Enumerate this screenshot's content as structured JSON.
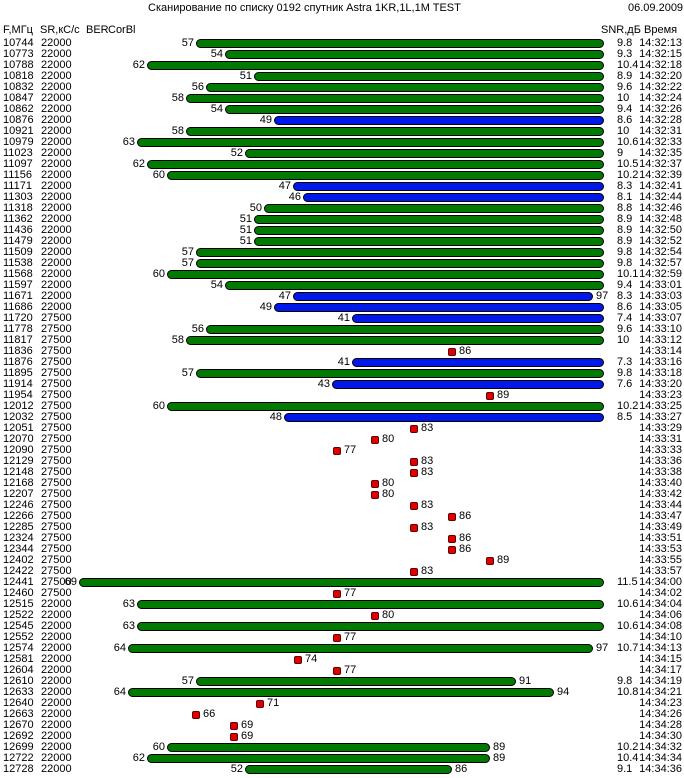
{
  "header": {
    "title": "Сканирование по списку  0192    спутник  Astra 1KR,1L,1M   TEST",
    "date": "06.09.2009"
  },
  "columns": {
    "freq": "F,МГц",
    "sr": "SR,кС/с",
    "ber": "BER",
    "corbl": "CorBl",
    "snr": "SNR,дБ",
    "time": "Время"
  },
  "colors": {
    "green": "#007a00",
    "blue": "#0018e8",
    "red": "#e00000"
  },
  "rows": [
    {
      "freq": "10744",
      "sr": "22000",
      "level": "57",
      "quality": "",
      "color": "green",
      "snr": "9.8",
      "time": "14:32:13"
    },
    {
      "freq": "10773",
      "sr": "22000",
      "level": "54",
      "quality": "",
      "color": "green",
      "snr": "9.3",
      "time": "14:32:15"
    },
    {
      "freq": "10788",
      "sr": "22000",
      "level": "62",
      "quality": "",
      "color": "green",
      "snr": "10.4",
      "time": "14:32:18"
    },
    {
      "freq": "10818",
      "sr": "22000",
      "level": "51",
      "quality": "",
      "color": "green",
      "snr": "8.9",
      "time": "14:32:20"
    },
    {
      "freq": "10832",
      "sr": "22000",
      "level": "56",
      "quality": "",
      "color": "green",
      "snr": "9.6",
      "time": "14:32:22"
    },
    {
      "freq": "10847",
      "sr": "22000",
      "level": "58",
      "quality": "",
      "color": "green",
      "snr": "10",
      "time": "14:32:24"
    },
    {
      "freq": "10862",
      "sr": "22000",
      "level": "54",
      "quality": "",
      "color": "green",
      "snr": "9.4",
      "time": "14:32:26"
    },
    {
      "freq": "10876",
      "sr": "22000",
      "level": "49",
      "quality": "",
      "color": "blue",
      "snr": "8.6",
      "time": "14:32:28"
    },
    {
      "freq": "10921",
      "sr": "22000",
      "level": "58",
      "quality": "",
      "color": "green",
      "snr": "10",
      "time": "14:32:31"
    },
    {
      "freq": "10979",
      "sr": "22000",
      "level": "63",
      "quality": "",
      "color": "green",
      "snr": "10.6",
      "time": "14:32:33"
    },
    {
      "freq": "11023",
      "sr": "22000",
      "level": "52",
      "quality": "",
      "color": "green",
      "snr": "9",
      "time": "14:32:35"
    },
    {
      "freq": "11097",
      "sr": "22000",
      "level": "62",
      "quality": "",
      "color": "green",
      "snr": "10.5",
      "time": "14:32:37"
    },
    {
      "freq": "11156",
      "sr": "22000",
      "level": "60",
      "quality": "",
      "color": "green",
      "snr": "10.2",
      "time": "14:32:39"
    },
    {
      "freq": "11171",
      "sr": "22000",
      "level": "47",
      "quality": "",
      "color": "blue",
      "snr": "8.3",
      "time": "14:32:41"
    },
    {
      "freq": "11303",
      "sr": "22000",
      "level": "46",
      "quality": "",
      "color": "blue",
      "snr": "8.1",
      "time": "14:32:44"
    },
    {
      "freq": "11318",
      "sr": "22000",
      "level": "50",
      "quality": "",
      "color": "green",
      "snr": "8.8",
      "time": "14:32:46"
    },
    {
      "freq": "11362",
      "sr": "22000",
      "level": "51",
      "quality": "",
      "color": "green",
      "snr": "8.9",
      "time": "14:32:48"
    },
    {
      "freq": "11436",
      "sr": "22000",
      "level": "51",
      "quality": "",
      "color": "green",
      "snr": "8.9",
      "time": "14:32:50"
    },
    {
      "freq": "11479",
      "sr": "22000",
      "level": "51",
      "quality": "",
      "color": "green",
      "snr": "8.9",
      "time": "14:32:52"
    },
    {
      "freq": "11509",
      "sr": "22000",
      "level": "57",
      "quality": "",
      "color": "green",
      "snr": "9.8",
      "time": "14:32:54"
    },
    {
      "freq": "11538",
      "sr": "22000",
      "level": "57",
      "quality": "",
      "color": "green",
      "snr": "9.8",
      "time": "14:32:57"
    },
    {
      "freq": "11568",
      "sr": "22000",
      "level": "60",
      "quality": "",
      "color": "green",
      "snr": "10.1",
      "time": "14:32:59"
    },
    {
      "freq": "11597",
      "sr": "22000",
      "level": "54",
      "quality": "",
      "color": "green",
      "snr": "9.4",
      "time": "14:33:01"
    },
    {
      "freq": "11671",
      "sr": "22000",
      "level": "47",
      "quality": "97",
      "color": "blue",
      "snr": "8.3",
      "time": "14:33:03"
    },
    {
      "freq": "11686",
      "sr": "22000",
      "level": "49",
      "quality": "",
      "color": "blue",
      "snr": "8.6",
      "time": "14:33:05"
    },
    {
      "freq": "11720",
      "sr": "27500",
      "level": "41",
      "quality": "",
      "color": "blue",
      "snr": "7.4",
      "time": "14:33:07"
    },
    {
      "freq": "11778",
      "sr": "27500",
      "level": "56",
      "quality": "",
      "color": "green",
      "snr": "9.6",
      "time": "14:33:10"
    },
    {
      "freq": "11817",
      "sr": "27500",
      "level": "58",
      "quality": "",
      "color": "green",
      "snr": "10",
      "time": "14:33:12"
    },
    {
      "freq": "11836",
      "sr": "27500",
      "level": "",
      "quality": "86",
      "color": "red",
      "snr": "",
      "time": "14:33:14"
    },
    {
      "freq": "11876",
      "sr": "27500",
      "level": "41",
      "quality": "",
      "color": "blue",
      "snr": "7.3",
      "time": "14:33:16"
    },
    {
      "freq": "11895",
      "sr": "27500",
      "level": "57",
      "quality": "",
      "color": "green",
      "snr": "9.8",
      "time": "14:33:18"
    },
    {
      "freq": "11914",
      "sr": "27500",
      "level": "43",
      "quality": "",
      "color": "blue",
      "snr": "7.6",
      "time": "14:33:20"
    },
    {
      "freq": "11954",
      "sr": "27500",
      "level": "",
      "quality": "89",
      "color": "red",
      "snr": "",
      "time": "14:33:23"
    },
    {
      "freq": "12012",
      "sr": "27500",
      "level": "60",
      "quality": "",
      "color": "green",
      "snr": "10.2",
      "time": "14:33:25"
    },
    {
      "freq": "12032",
      "sr": "27500",
      "level": "48",
      "quality": "",
      "color": "blue",
      "snr": "8.5",
      "time": "14:33:27"
    },
    {
      "freq": "12051",
      "sr": "27500",
      "level": "",
      "quality": "83",
      "color": "red",
      "snr": "",
      "time": "14:33:29"
    },
    {
      "freq": "12070",
      "sr": "27500",
      "level": "",
      "quality": "80",
      "color": "red",
      "snr": "",
      "time": "14:33:31"
    },
    {
      "freq": "12090",
      "sr": "27500",
      "level": "",
      "quality": "77",
      "color": "red",
      "snr": "",
      "time": "14:33:33"
    },
    {
      "freq": "12129",
      "sr": "27500",
      "level": "",
      "quality": "83",
      "color": "red",
      "snr": "",
      "time": "14:33:36"
    },
    {
      "freq": "12148",
      "sr": "27500",
      "level": "",
      "quality": "83",
      "color": "red",
      "snr": "",
      "time": "14:33:38"
    },
    {
      "freq": "12168",
      "sr": "27500",
      "level": "",
      "quality": "80",
      "color": "red",
      "snr": "",
      "time": "14:33:40"
    },
    {
      "freq": "12207",
      "sr": "27500",
      "level": "",
      "quality": "80",
      "color": "red",
      "snr": "",
      "time": "14:33:42"
    },
    {
      "freq": "12246",
      "sr": "27500",
      "level": "",
      "quality": "83",
      "color": "red",
      "snr": "",
      "time": "14:33:44"
    },
    {
      "freq": "12266",
      "sr": "27500",
      "level": "",
      "quality": "86",
      "color": "red",
      "snr": "",
      "time": "14:33:47"
    },
    {
      "freq": "12285",
      "sr": "27500",
      "level": "",
      "quality": "83",
      "color": "red",
      "snr": "",
      "time": "14:33:49"
    },
    {
      "freq": "12324",
      "sr": "27500",
      "level": "",
      "quality": "86",
      "color": "red",
      "snr": "",
      "time": "14:33:51"
    },
    {
      "freq": "12344",
      "sr": "27500",
      "level": "",
      "quality": "86",
      "color": "red",
      "snr": "",
      "time": "14:33:53"
    },
    {
      "freq": "12402",
      "sr": "27500",
      "level": "",
      "quality": "89",
      "color": "red",
      "snr": "",
      "time": "14:33:55"
    },
    {
      "freq": "12422",
      "sr": "27500",
      "level": "",
      "quality": "83",
      "color": "red",
      "snr": "",
      "time": "14:33:57"
    },
    {
      "freq": "12441",
      "sr": "27500",
      "level": "69",
      "quality": "",
      "color": "green",
      "snr": "11.5",
      "time": "14:34:00"
    },
    {
      "freq": "12460",
      "sr": "27500",
      "level": "",
      "quality": "77",
      "color": "red",
      "snr": "",
      "time": "14:34:02"
    },
    {
      "freq": "12515",
      "sr": "22000",
      "level": "63",
      "quality": "",
      "color": "green",
      "snr": "10.6",
      "time": "14:34:04"
    },
    {
      "freq": "12522",
      "sr": "22000",
      "level": "",
      "quality": "80",
      "color": "red",
      "snr": "",
      "time": "14:34:06"
    },
    {
      "freq": "12545",
      "sr": "22000",
      "level": "63",
      "quality": "",
      "color": "green",
      "snr": "10.6",
      "time": "14:34:08"
    },
    {
      "freq": "12552",
      "sr": "22000",
      "level": "",
      "quality": "77",
      "color": "red",
      "snr": "",
      "time": "14:34:10"
    },
    {
      "freq": "12574",
      "sr": "22000",
      "level": "64",
      "quality": "97",
      "color": "green",
      "snr": "10.7",
      "time": "14:34:13"
    },
    {
      "freq": "12581",
      "sr": "22000",
      "level": "",
      "quality": "74",
      "color": "red",
      "snr": "",
      "time": "14:34:15"
    },
    {
      "freq": "12604",
      "sr": "22000",
      "level": "",
      "quality": "77",
      "color": "red",
      "snr": "",
      "time": "14:34:17"
    },
    {
      "freq": "12610",
      "sr": "22000",
      "level": "57",
      "quality": "91",
      "color": "green",
      "snr": "9.8",
      "time": "14:34:19"
    },
    {
      "freq": "12633",
      "sr": "22000",
      "level": "64",
      "quality": "94",
      "color": "green",
      "snr": "10.8",
      "time": "14:34:21"
    },
    {
      "freq": "12640",
      "sr": "22000",
      "level": "",
      "quality": "71",
      "color": "red",
      "snr": "",
      "time": "14:34:23"
    },
    {
      "freq": "12663",
      "sr": "22000",
      "level": "",
      "quality": "66",
      "color": "red",
      "snr": "",
      "time": "14:34:26"
    },
    {
      "freq": "12670",
      "sr": "22000",
      "level": "",
      "quality": "69",
      "color": "red",
      "snr": "",
      "time": "14:34:28"
    },
    {
      "freq": "12692",
      "sr": "22000",
      "level": "",
      "quality": "69",
      "color": "red",
      "snr": "",
      "time": "14:34:30"
    },
    {
      "freq": "12699",
      "sr": "22000",
      "level": "60",
      "quality": "89",
      "color": "green",
      "snr": "10.2",
      "time": "14:34:32"
    },
    {
      "freq": "12722",
      "sr": "22000",
      "level": "62",
      "quality": "89",
      "color": "green",
      "snr": "10.4",
      "time": "14:34:34"
    },
    {
      "freq": "12728",
      "sr": "22000",
      "level": "52",
      "quality": "86",
      "color": "green",
      "snr": "9.1",
      "time": "14:34:36"
    }
  ]
}
